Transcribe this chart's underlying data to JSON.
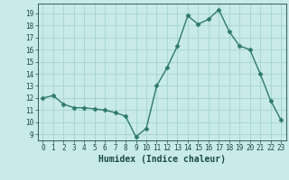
{
  "x": [
    0,
    1,
    2,
    3,
    4,
    5,
    6,
    7,
    8,
    9,
    10,
    11,
    12,
    13,
    14,
    15,
    16,
    17,
    18,
    19,
    20,
    21,
    22,
    23
  ],
  "y": [
    12,
    12.2,
    11.5,
    11.2,
    11.2,
    11.1,
    11.0,
    10.8,
    10.5,
    8.8,
    9.5,
    13.0,
    14.5,
    16.3,
    18.8,
    18.1,
    18.5,
    19.3,
    17.5,
    16.3,
    16.0,
    14.0,
    11.8,
    10.2
  ],
  "xlabel": "Humidex (Indice chaleur)",
  "line_color": "#2d7a6a",
  "marker": "D",
  "marker_size": 2.5,
  "line_width": 1.0,
  "bg_color": "#c8eae8",
  "grid_color": "#a8d8d4",
  "label_color": "#1a4a45",
  "xlim": [
    -0.5,
    23.5
  ],
  "ylim": [
    8.5,
    19.8
  ],
  "yticks": [
    9,
    10,
    11,
    12,
    13,
    14,
    15,
    16,
    17,
    18,
    19
  ],
  "xticks": [
    0,
    1,
    2,
    3,
    4,
    5,
    6,
    7,
    8,
    9,
    10,
    11,
    12,
    13,
    14,
    15,
    16,
    17,
    18,
    19,
    20,
    21,
    22,
    23
  ]
}
